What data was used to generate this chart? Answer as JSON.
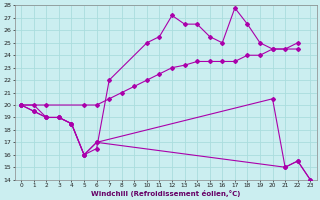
{
  "xlabel": "Windchill (Refroidissement éolien,°C)",
  "bg_color": "#cbeef0",
  "grid_color": "#aadddd",
  "line_color": "#aa00aa",
  "xlim": [
    -0.5,
    23.5
  ],
  "ylim": [
    14,
    28
  ],
  "yticks": [
    14,
    15,
    16,
    17,
    18,
    19,
    20,
    21,
    22,
    23,
    24,
    25,
    26,
    27,
    28
  ],
  "xticks": [
    0,
    1,
    2,
    3,
    4,
    5,
    6,
    7,
    8,
    9,
    10,
    11,
    12,
    13,
    14,
    15,
    16,
    17,
    18,
    19,
    20,
    21,
    22,
    23
  ],
  "lines": [
    {
      "x": [
        0,
        1,
        2,
        3,
        4,
        5,
        6,
        7,
        10,
        11,
        12,
        13,
        14,
        15,
        16,
        17,
        18,
        19,
        20,
        22
      ],
      "y": [
        20,
        20,
        19,
        19,
        18.5,
        16,
        16.5,
        22,
        25,
        25.5,
        27.2,
        26.5,
        26.5,
        25.5,
        25,
        27.8,
        26.5,
        25,
        24.5,
        24.5
      ]
    },
    {
      "x": [
        0,
        2,
        5,
        6,
        7,
        8,
        9,
        10,
        11,
        12,
        13,
        14,
        15,
        16,
        17,
        18,
        19,
        20,
        21,
        22
      ],
      "y": [
        20,
        20,
        20,
        20,
        20.5,
        21,
        21.5,
        22,
        22.5,
        23,
        23.2,
        23.5,
        23.5,
        23.5,
        23.5,
        24,
        24,
        24.5,
        24.5,
        25
      ]
    },
    {
      "x": [
        0,
        1,
        2,
        3,
        4,
        5,
        6,
        20,
        21,
        22,
        23
      ],
      "y": [
        20,
        19.5,
        19,
        19,
        18.5,
        16,
        17,
        20.5,
        15,
        15.5,
        14
      ]
    },
    {
      "x": [
        0,
        1,
        2,
        3,
        4,
        5,
        6,
        21,
        22,
        23
      ],
      "y": [
        20,
        19.5,
        19,
        19,
        18.5,
        16,
        17,
        15,
        15.5,
        14
      ]
    }
  ]
}
